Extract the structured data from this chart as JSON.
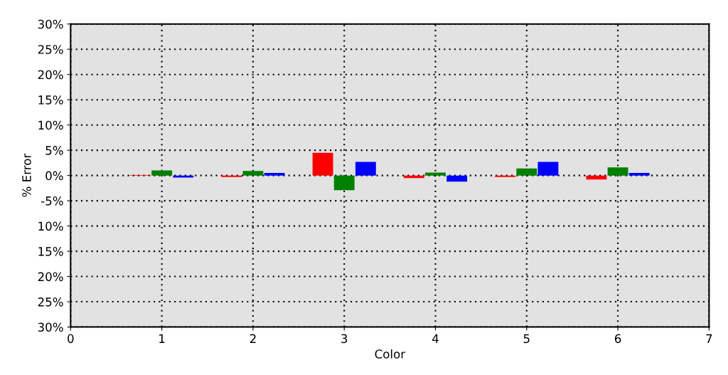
{
  "chart_data": {
    "type": "bar",
    "xlabel": "Color",
    "ylabel": "% Error",
    "series": [
      {
        "color": "#ff0000",
        "x": [
          1,
          2,
          3,
          4,
          5,
          6
        ],
        "values": [
          0.1,
          -0.3,
          4.5,
          -0.5,
          -0.3,
          -0.8
        ]
      },
      {
        "color": "#008000",
        "x": [
          1,
          2,
          3,
          4,
          5,
          6
        ],
        "values": [
          1.0,
          0.9,
          -2.9,
          0.6,
          1.4,
          1.6
        ]
      },
      {
        "color": "#0000ff",
        "x": [
          1,
          2,
          3,
          4,
          5,
          6
        ],
        "values": [
          -0.4,
          0.5,
          2.7,
          -1.2,
          2.7,
          0.5
        ]
      }
    ],
    "xlim": [
      0,
      7
    ],
    "xticks": [
      0,
      1,
      2,
      3,
      4,
      5,
      6,
      7
    ],
    "ylim": [
      -30,
      30
    ],
    "yticks": [
      {
        "value": -30,
        "label": "30%"
      },
      {
        "value": -25,
        "label": "25%"
      },
      {
        "value": -20,
        "label": "20%"
      },
      {
        "value": -15,
        "label": "15%"
      },
      {
        "value": -10,
        "label": "10%"
      },
      {
        "value": -5,
        "label": "-5%"
      },
      {
        "value": 0,
        "label": "0%"
      },
      {
        "value": 5,
        "label": "5%"
      },
      {
        "value": 10,
        "label": "10%"
      },
      {
        "value": 15,
        "label": "15%"
      },
      {
        "value": 20,
        "label": "20%"
      },
      {
        "value": 25,
        "label": "25%"
      },
      {
        "value": 30,
        "label": "30%"
      }
    ],
    "grid": true
  }
}
